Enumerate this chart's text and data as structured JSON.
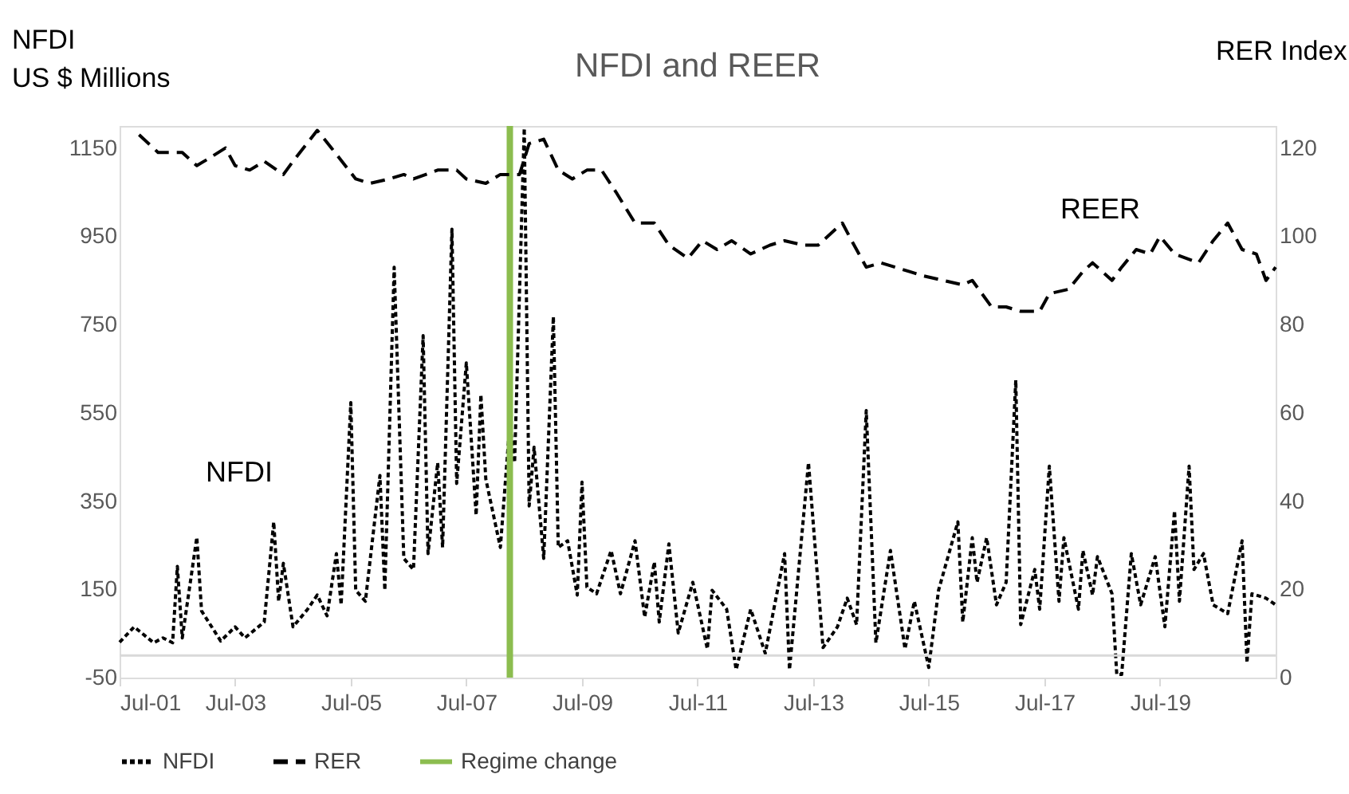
{
  "chart_data": {
    "type": "line",
    "title": "NFDI and REER",
    "ylabel": "NFDI\nUS $ Millions",
    "y2label": "RER Index",
    "xlim": [
      "2001-07",
      "2021-07"
    ],
    "xticks": [
      {
        "value": "2001-07",
        "label": "Jul-01"
      },
      {
        "value": "2003-07",
        "label": "Jul-03"
      },
      {
        "value": "2005-07",
        "label": "Jul-05"
      },
      {
        "value": "2007-07",
        "label": "Jul-07"
      },
      {
        "value": "2009-07",
        "label": "Jul-09"
      },
      {
        "value": "2011-07",
        "label": "Jul-11"
      },
      {
        "value": "2013-07",
        "label": "Jul-13"
      },
      {
        "value": "2015-07",
        "label": "Jul-15"
      },
      {
        "value": "2017-07",
        "label": "Jul-17"
      },
      {
        "value": "2019-07",
        "label": "Jul-19"
      }
    ],
    "ylim": [
      -50,
      1200
    ],
    "yticks": [
      -50,
      150,
      350,
      550,
      750,
      950,
      1150
    ],
    "y2lim": [
      0,
      125
    ],
    "y2ticks": [
      0,
      20,
      40,
      60,
      80,
      100,
      120
    ],
    "legend": "bottom",
    "series": [
      {
        "name": "NFDI",
        "color": "#000000",
        "line_style": "dotted",
        "x": [
          "2001-07",
          "2001-10",
          "2002-02",
          "2002-04",
          "2002-06",
          "2002-07",
          "2002-08",
          "2002-11",
          "2002-12",
          "2003-04",
          "2003-07",
          "2003-09",
          "2004-01",
          "2004-03",
          "2004-04",
          "2004-05",
          "2004-07",
          "2004-10",
          "2004-12",
          "2005-02",
          "2005-04",
          "2005-05",
          "2005-07",
          "2005-08",
          "2005-10",
          "2006-01",
          "2006-02",
          "2006-04",
          "2006-06",
          "2006-08",
          "2006-10",
          "2006-11",
          "2007-01",
          "2007-02",
          "2007-04",
          "2007-05",
          "2007-07",
          "2007-09",
          "2007-10",
          "2007-11",
          "2008-02",
          "2008-04",
          "2008-05",
          "2008-07",
          "2008-08",
          "2008-09",
          "2008-11",
          "2009-01",
          "2009-02",
          "2009-04",
          "2009-06",
          "2009-07",
          "2009-08",
          "2009-10",
          "2010-01",
          "2010-03",
          "2010-06",
          "2010-08",
          "2010-10",
          "2010-11",
          "2011-01",
          "2011-03",
          "2011-06",
          "2011-09",
          "2011-10",
          "2012-01",
          "2012-03",
          "2012-06",
          "2012-09",
          "2013-01",
          "2013-02",
          "2013-06",
          "2013-09",
          "2013-12",
          "2014-02",
          "2014-04",
          "2014-06",
          "2014-08",
          "2014-11",
          "2015-02",
          "2015-04",
          "2015-07",
          "2015-09",
          "2016-01",
          "2016-02",
          "2016-04",
          "2016-05",
          "2016-07",
          "2016-09",
          "2016-11",
          "2017-01",
          "2017-02",
          "2017-05",
          "2017-06",
          "2017-08",
          "2017-10",
          "2017-11",
          "2018-02",
          "2018-03",
          "2018-05",
          "2018-06",
          "2018-09",
          "2018-10",
          "2018-11",
          "2019-01",
          "2019-03",
          "2019-06",
          "2019-08",
          "2019-10",
          "2019-11",
          "2020-01",
          "2020-02",
          "2020-04",
          "2020-06",
          "2020-09",
          "2020-12",
          "2021-01",
          "2021-02",
          "2021-05",
          "2021-07"
        ],
        "values": [
          30,
          65,
          29,
          40,
          29,
          202,
          40,
          268,
          101,
          33,
          65,
          40,
          76,
          303,
          123,
          209,
          65,
          105,
          137,
          90,
          231,
          115,
          573,
          148,
          123,
          408,
          148,
          880,
          220,
          195,
          725,
          231,
          437,
          245,
          966,
          390,
          663,
          318,
          591,
          400,
          245,
          526,
          437,
          1195,
          339,
          472,
          220,
          768,
          245,
          260,
          137,
          393,
          155,
          140,
          238,
          140,
          260,
          87,
          212,
          76,
          253,
          51,
          166,
          15,
          148,
          105,
          -32,
          105,
          5,
          231,
          -32,
          437,
          18,
          65,
          130,
          70,
          555,
          29,
          238,
          15,
          123,
          -27,
          148,
          303,
          76,
          267,
          166,
          267,
          115,
          166,
          624,
          70,
          195,
          105,
          429,
          123,
          267,
          105,
          238,
          137,
          224,
          140,
          -43,
          -43,
          231,
          115,
          224,
          65,
          328,
          123,
          429,
          195,
          231,
          115,
          95,
          260,
          -16,
          140,
          130,
          115
        ]
      },
      {
        "name": "RER",
        "color": "#000000",
        "line_style": "dashed",
        "axis": "y2",
        "x": [
          "2001-11",
          "2002-03",
          "2002-08",
          "2002-11",
          "2003-02",
          "2003-05",
          "2003-07",
          "2003-10",
          "2004-01",
          "2004-05",
          "2004-07",
          "2004-12",
          "2005-03",
          "2005-08",
          "2005-11",
          "2006-03",
          "2006-06",
          "2006-08",
          "2007-01",
          "2007-05",
          "2007-07",
          "2007-11",
          "2008-02",
          "2008-06",
          "2008-08",
          "2008-11",
          "2009-02",
          "2009-05",
          "2009-08",
          "2009-11",
          "2010-02",
          "2010-06",
          "2010-10",
          "2011-01",
          "2011-05",
          "2011-08",
          "2011-11",
          "2012-02",
          "2012-06",
          "2012-10",
          "2013-01",
          "2013-05",
          "2013-08",
          "2014-01",
          "2014-03",
          "2014-06",
          "2014-09",
          "2014-12",
          "2015-03",
          "2015-06",
          "2015-10",
          "2016-02",
          "2016-04",
          "2016-08",
          "2016-11",
          "2017-02",
          "2017-06",
          "2017-08",
          "2017-12",
          "2018-03",
          "2018-05",
          "2018-09",
          "2018-11",
          "2019-02",
          "2019-05",
          "2019-07",
          "2019-10",
          "2020-03",
          "2020-06",
          "2020-09",
          "2020-12",
          "2021-03",
          "2021-05",
          "2021-07"
        ],
        "values": [
          123,
          119,
          119,
          116,
          118,
          120,
          116,
          115,
          117,
          114,
          117,
          124,
          120,
          113,
          112,
          113,
          114,
          113,
          115,
          115,
          113,
          112,
          114,
          114,
          121,
          122,
          115,
          113,
          115,
          115,
          110,
          103,
          103,
          98,
          95,
          99,
          97,
          99,
          96,
          98,
          99,
          98,
          98,
          103,
          99,
          93,
          94,
          93,
          92,
          91,
          90,
          89,
          90,
          84,
          84,
          83,
          83,
          87,
          88,
          92,
          94,
          90,
          93,
          97,
          96,
          100,
          96,
          94,
          99,
          103,
          97,
          96,
          90,
          93
        ]
      }
    ],
    "ref_lines": [
      {
        "axis": "y",
        "value": 0,
        "color": "#d9d9d9"
      },
      {
        "axis": "x",
        "value": "2008-04",
        "label": "Regime change",
        "color": "#8cbd4f"
      }
    ],
    "annotations": [
      "NFDI",
      "REER"
    ]
  }
}
